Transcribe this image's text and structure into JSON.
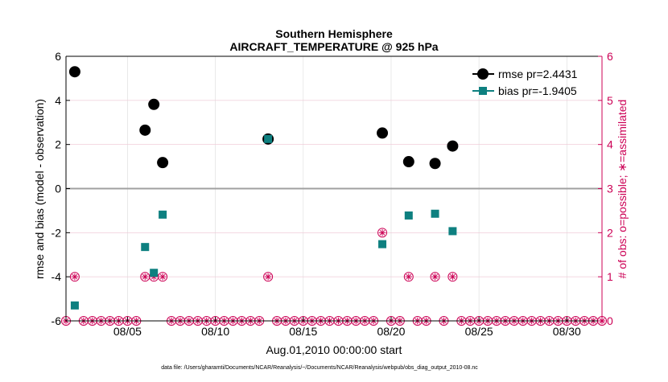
{
  "chart_data": {
    "type": "scatter",
    "title": "Southern Hemisphere",
    "subtitle": "AIRCRAFT_TEMPERATURE @ 925 hPa",
    "xlabel": "Aug.01,2010 00:00:00 start",
    "ylabel_left": "rmse and bias (model - observation)",
    "ylabel_right": "# of obs: o=possible; ∗=assimilated",
    "footer": "data file: /Users/gharamti/Documents/NCAR/Reanalysis/~/Documents/NCAR/Reanalysis/webpub/obs_diag_output_2010-08.nc",
    "xlim": [
      1.5,
      32
    ],
    "ylim_left": [
      -6,
      6
    ],
    "ylim_right": [
      0,
      6
    ],
    "x_ticks": [
      {
        "value": 5,
        "label": "08/05"
      },
      {
        "value": 10,
        "label": "08/10"
      },
      {
        "value": 15,
        "label": "08/15"
      },
      {
        "value": 20,
        "label": "08/20"
      },
      {
        "value": 25,
        "label": "08/25"
      },
      {
        "value": 30,
        "label": "08/30"
      }
    ],
    "y_ticks_left": [
      -6,
      -4,
      -2,
      0,
      2,
      4,
      6
    ],
    "y_ticks_right": [
      0,
      1,
      2,
      3,
      4,
      5,
      6
    ],
    "grid": true,
    "legend_position": "top-right",
    "colors": {
      "rmse": "#000000",
      "bias": "#0e8080",
      "obs": "#cc0055",
      "zero_line": "#a0a0a0",
      "grid": "#e0e0e0"
    },
    "series": [
      {
        "name": "rmse pr=2.4431",
        "marker": "circle",
        "x": [
          2,
          6,
          6.5,
          7,
          13,
          19.5,
          21,
          22.5,
          23.5
        ],
        "y": [
          5.3,
          2.65,
          3.82,
          1.18,
          2.25,
          2.52,
          1.22,
          1.14,
          1.93
        ]
      },
      {
        "name": "bias pr=-1.9405",
        "marker": "square",
        "x": [
          2,
          6,
          6.5,
          7,
          13,
          19.5,
          21,
          22.5,
          23.5
        ],
        "y": [
          -5.3,
          -2.65,
          -3.82,
          -1.18,
          2.25,
          -2.52,
          -1.22,
          -1.14,
          -1.93
        ]
      }
    ],
    "obs_counts": {
      "x": [
        1.5,
        2,
        2.5,
        3,
        3.5,
        4,
        4.5,
        5,
        5.5,
        6,
        6.5,
        7,
        7.5,
        8,
        8.5,
        9,
        9.5,
        10,
        10.5,
        11,
        11.5,
        12,
        12.5,
        13,
        13.5,
        14,
        14.5,
        15,
        15.5,
        16,
        16.5,
        17,
        17.5,
        18,
        18.5,
        19,
        19.5,
        20,
        20.5,
        21,
        21.5,
        22,
        22.5,
        23,
        23.5,
        24,
        24.5,
        25,
        25.5,
        26,
        26.5,
        27,
        27.5,
        28,
        28.5,
        29,
        29.5,
        30,
        30.5,
        31,
        31.5,
        32
      ],
      "possible": [
        0,
        1,
        0,
        0,
        0,
        0,
        0,
        0,
        0,
        1,
        1,
        1,
        0,
        0,
        0,
        0,
        0,
        0,
        0,
        0,
        0,
        0,
        0,
        1,
        0,
        0,
        0,
        0,
        0,
        0,
        0,
        0,
        0,
        0,
        0,
        0,
        2,
        0,
        0,
        1,
        0,
        0,
        1,
        0,
        1,
        0,
        0,
        0,
        0,
        0,
        0,
        0,
        0,
        0,
        0,
        0,
        0,
        0,
        0,
        0,
        0,
        0
      ],
      "assimilated": [
        0,
        1,
        0,
        0,
        0,
        0,
        0,
        0,
        0,
        1,
        1,
        1,
        0,
        0,
        0,
        0,
        0,
        0,
        0,
        0,
        0,
        0,
        0,
        1,
        0,
        0,
        0,
        0,
        0,
        0,
        0,
        0,
        0,
        0,
        0,
        0,
        2,
        0,
        0,
        1,
        0,
        0,
        1,
        0,
        1,
        0,
        0,
        0,
        0,
        0,
        0,
        0,
        0,
        0,
        0,
        0,
        0,
        0,
        0,
        0,
        0,
        0
      ]
    }
  }
}
